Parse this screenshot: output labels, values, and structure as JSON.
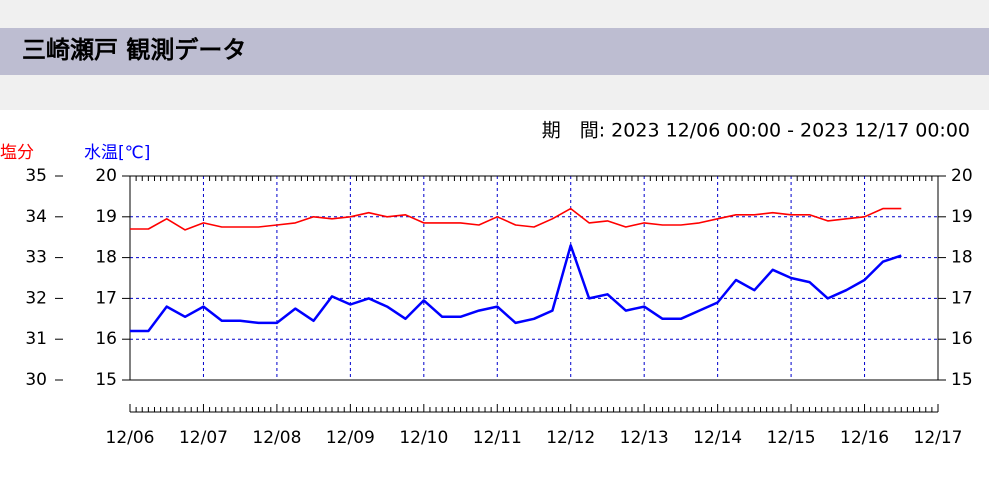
{
  "header": {
    "title": "三崎瀬戸 観測データ"
  },
  "chart_data": {
    "type": "line",
    "subtitle": "期　間: 2023 12/06 00:00 - 2023 12/17 00:00",
    "y_label": "塩分",
    "y2_label": "水温[℃]",
    "x": [
      0,
      0.25,
      0.5,
      0.75,
      1,
      1.25,
      1.5,
      1.75,
      2,
      2.25,
      2.5,
      2.75,
      3,
      3.25,
      3.5,
      3.75,
      4,
      4.25,
      4.5,
      4.75,
      5,
      5.25,
      5.5,
      5.75,
      6,
      6.25,
      6.5,
      6.75,
      7,
      7.25,
      7.5,
      7.75,
      8,
      8.25,
      8.5,
      8.75,
      9,
      9.25,
      9.5,
      9.75,
      10,
      10.25,
      10.5
    ],
    "series": [
      {
        "color": "#ff0000",
        "values": [
          33.7,
          33.7,
          33.95,
          33.68,
          33.85,
          33.75,
          33.75,
          33.75,
          33.8,
          33.85,
          34.0,
          33.95,
          34.0,
          34.1,
          34.0,
          34.05,
          33.85,
          33.85,
          33.85,
          33.8,
          34.0,
          33.8,
          33.75,
          33.95,
          34.2,
          33.85,
          33.9,
          33.75,
          33.85,
          33.8,
          33.8,
          33.85,
          33.95,
          34.05,
          34.05,
          34.1,
          34.05,
          34.05,
          33.9,
          33.95,
          34.0,
          34.2,
          34.2
        ]
      },
      {
        "color": "#0000ff",
        "axis": "y2",
        "values": [
          16.2,
          16.2,
          16.8,
          16.55,
          16.8,
          16.45,
          16.45,
          16.4,
          16.4,
          16.75,
          16.45,
          17.05,
          16.85,
          17.0,
          16.8,
          16.5,
          16.95,
          16.55,
          16.55,
          16.7,
          16.8,
          16.4,
          16.5,
          16.7,
          18.3,
          17.0,
          17.1,
          16.7,
          16.8,
          16.5,
          16.5,
          16.7,
          16.9,
          17.45,
          17.2,
          17.7,
          17.5,
          17.4,
          17.0,
          17.2,
          17.45,
          17.9,
          18.05
        ]
      }
    ],
    "xlim": [
      0,
      11
    ],
    "xticks": [
      {
        "value": 0,
        "label": "12/06"
      },
      {
        "value": 1,
        "label": "12/07"
      },
      {
        "value": 2,
        "label": "12/08"
      },
      {
        "value": 3,
        "label": "12/09"
      },
      {
        "value": 4,
        "label": "12/10"
      },
      {
        "value": 5,
        "label": "12/11"
      },
      {
        "value": 6,
        "label": "12/12"
      },
      {
        "value": 7,
        "label": "12/13"
      },
      {
        "value": 8,
        "label": "12/14"
      },
      {
        "value": 9,
        "label": "12/15"
      },
      {
        "value": 10,
        "label": "12/16"
      },
      {
        "value": 11,
        "label": "12/17"
      }
    ],
    "ylim": [
      30,
      35
    ],
    "yticks": [
      30,
      31,
      32,
      33,
      34,
      35
    ],
    "y2lim": [
      15,
      20
    ],
    "y2ticks": [
      15,
      16,
      17,
      18,
      19,
      20
    ],
    "grid": true,
    "grid_color": "#0000cc"
  }
}
